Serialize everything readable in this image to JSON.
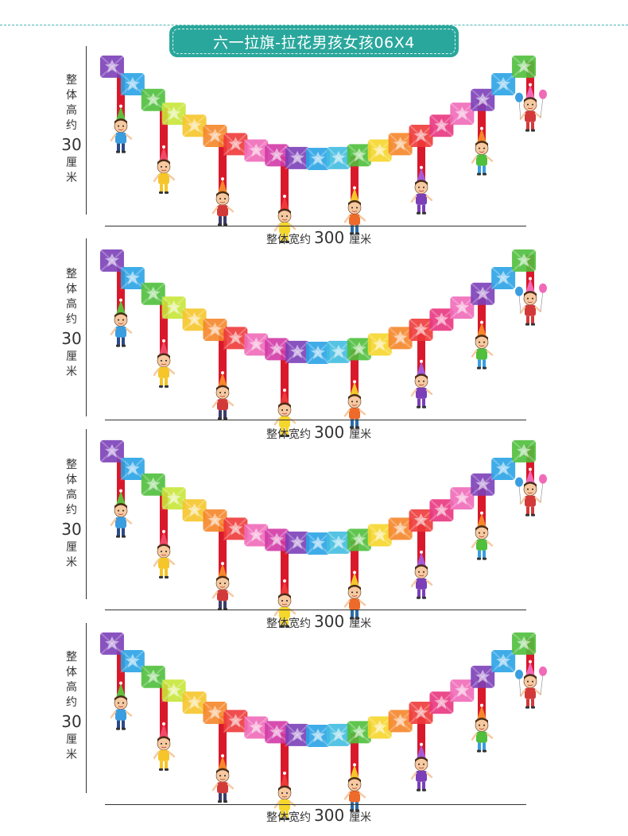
{
  "title": "六一拉旗-拉花男孩女孩06X4",
  "dimension": {
    "height_prefix": [
      "整",
      "体",
      "高",
      "约"
    ],
    "height_value": "30",
    "height_unit": [
      "厘",
      "米"
    ],
    "width_prefix": "整体宽约",
    "width_value": "300",
    "width_unit": "厘米"
  },
  "garland_colors": [
    "#7b3fb8",
    "#2aa3e6",
    "#4fbf3c",
    "#c8e63a",
    "#f5c52a",
    "#f5862a",
    "#ee3a3a",
    "#f06ab8",
    "#d23aa6",
    "#7b3fb8",
    "#2aa3e6",
    "#43bde0",
    "#4fbf3c",
    "#f5d62a",
    "#f5862a",
    "#ee3a3a",
    "#e8367f",
    "#f06ab8",
    "#7b3fb8",
    "#2aa3e6",
    "#4fbf3c"
  ],
  "ribbon_color": "#d9192b",
  "characters": [
    {
      "name": "boy-glasses",
      "hat": "#5fbf3c",
      "shirt": "#3a9de0",
      "pants": "#2c4a8a"
    },
    {
      "name": "girl-violin",
      "hat": "#f04a6a",
      "shirt": "#f5c52a",
      "pants": "#f5c52a"
    },
    {
      "name": "boy-horn",
      "hat": "#f5862a",
      "shirt": "#d23a3a",
      "pants": "#3b3b6a"
    },
    {
      "name": "girl-microphone",
      "hat": "#ee3a3a",
      "shirt": "#f5d62a",
      "pants": "#f5d62a"
    },
    {
      "name": "boy-cake",
      "hat": "#f5c52a",
      "shirt": "#ee6a2a",
      "pants": "#2c6aa8"
    },
    {
      "name": "girl-violin-purple",
      "hat": "#a55ad8",
      "shirt": "#7b3fb8",
      "pants": "#7b3fb8"
    },
    {
      "name": "boy-tambourine",
      "hat": "#f5862a",
      "shirt": "#4fbf3c",
      "pants": "#3a9de0"
    },
    {
      "name": "girl-balloons",
      "hat": "#f06ab8",
      "shirt": "#d23a3a",
      "pants": "#d23a3a"
    }
  ]
}
